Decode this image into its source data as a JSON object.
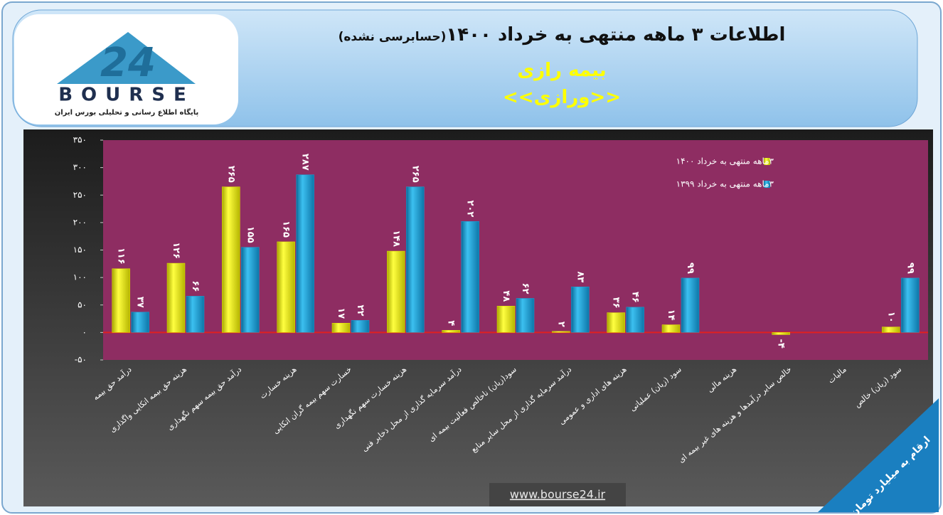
{
  "logo": {
    "number": "24",
    "name": "BOURSE",
    "tagline": "پایگاه اطلاع رسانی و تحلیلی بورس ایران"
  },
  "chart_data": {
    "type": "bar",
    "title": "اطلاعات ۳ ماهه منتهی به خرداد ۱۴۰۰",
    "title_note": "(حسابرسی نشده)",
    "subtitle": "بیمه رازی",
    "ticker": "<<ورازی>>",
    "categories": [
      "درآمد حق بیمه",
      "هزینه حق بیمه اتکایی واگذاری",
      "درآمد حق بیمه سهم نگهداری",
      "هزینه خسارت",
      "خسارت سهم بیمه گران اتکایی",
      "هزینه خسارت سهم نگهداری",
      "درآمد سرمایه گذاری از محل ذخایر فنی",
      "سود(زیان) ناخالص فعالیت بیمه ای",
      "درآمد سرمایه گذاری از محل سایر منابع",
      "هزینه های اداری و عمومی",
      "سود (زیان) عملیاتی",
      "هزینه مالی",
      "خالص سایر درآمدها و هزینه های غیر بیمه ای",
      "مالیات",
      "سود (زیان) خالص"
    ],
    "series": [
      {
        "name": "۳ماهه منتهی به خرداد ۱۴۰۰",
        "color": "#e6e600",
        "values": [
          116,
          126,
          265,
          165,
          17,
          148,
          4,
          48,
          2,
          36,
          14,
          0,
          -4,
          0,
          10
        ],
        "value_labels": [
          "۱۱۶",
          "۱۲۶",
          "۲۶۵",
          "۱۶۵",
          "۱۷",
          "۱۴۸",
          "۴",
          "۴۸",
          "۲",
          "۳۶",
          "۱۴",
          null,
          "-۴",
          null,
          "۱۰"
        ]
      },
      {
        "name": "۳ماهه منتهی به خرداد ۱۳۹۹",
        "color": "#1ba0d8",
        "values": [
          37,
          66,
          155,
          287,
          22,
          265,
          202,
          62,
          83,
          46,
          99,
          0,
          0,
          0,
          99
        ],
        "value_labels": [
          "۳۷",
          "۶۶",
          "۱۵۵",
          "۲۸۷",
          "۲۲",
          "۲۶۵",
          "۲۰۲",
          "۶۲",
          "۸۳",
          "۴۶",
          "۹۹",
          null,
          null,
          null,
          "۹۹"
        ]
      }
    ],
    "ylim": [
      -50,
      350
    ],
    "yticks": [
      {
        "value": 350,
        "label": "۳۵۰"
      },
      {
        "value": 300,
        "label": "۳۰۰"
      },
      {
        "value": 250,
        "label": "۲۵۰"
      },
      {
        "value": 200,
        "label": "۲۰۰"
      },
      {
        "value": 150,
        "label": "۱۵۰"
      },
      {
        "value": 100,
        "label": "۱۰۰"
      },
      {
        "value": 50,
        "label": "۵۰"
      },
      {
        "value": 0,
        "label": "۰"
      },
      {
        "value": -50,
        "label": "-۵۰"
      }
    ],
    "grid": false,
    "legend": "top-right"
  },
  "footer": {
    "url": "www.bourse24.ir",
    "unit_note": "ارقام به میلیارد تومان"
  }
}
